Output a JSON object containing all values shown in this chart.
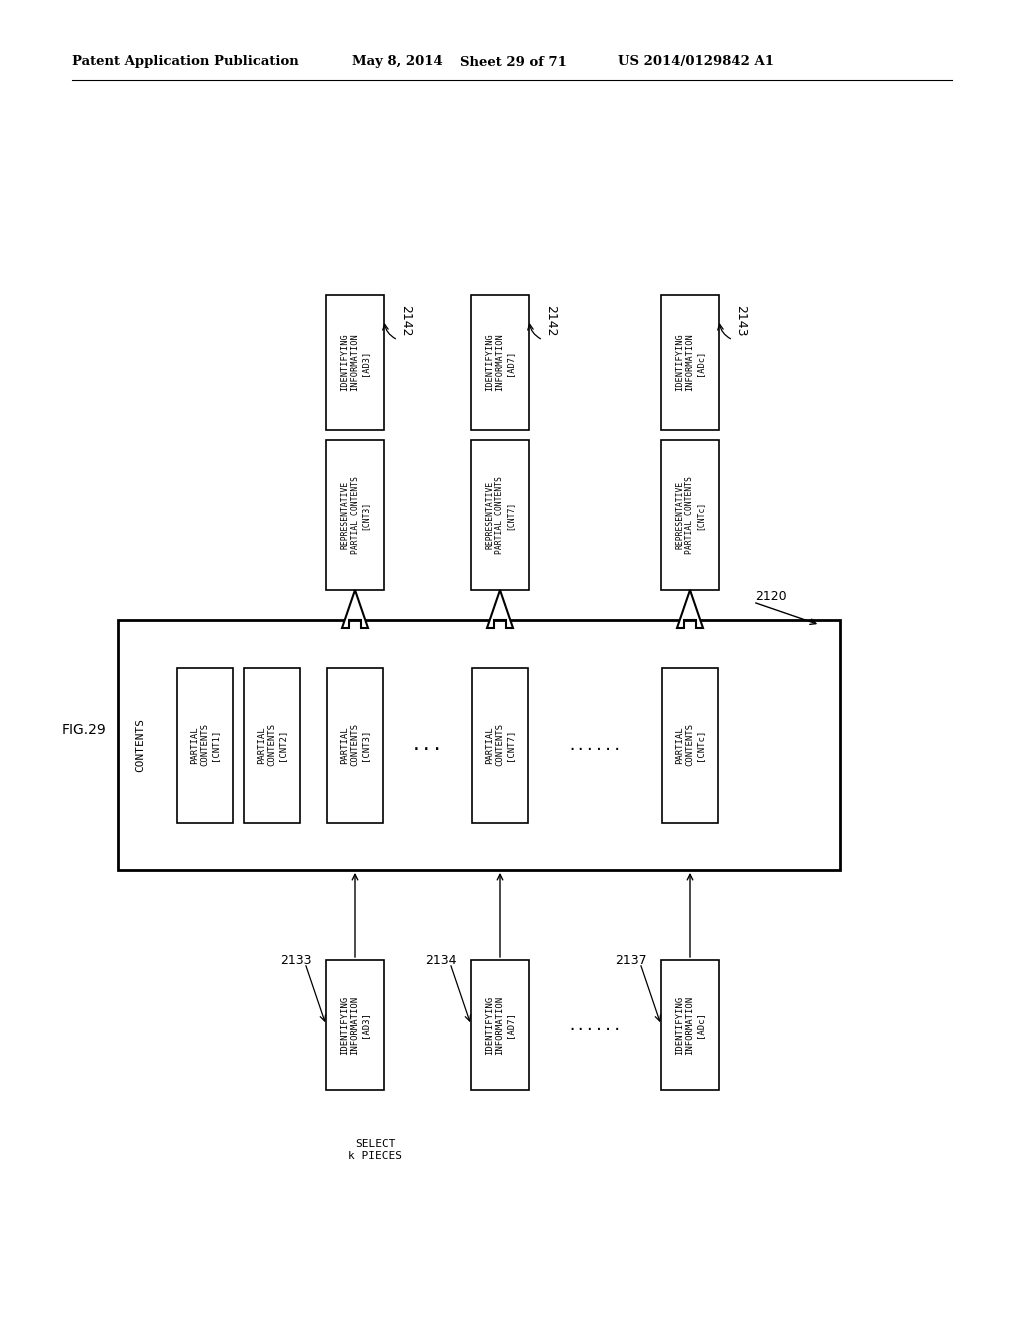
{
  "bg_color": "#ffffff",
  "header_text": "Patent Application Publication",
  "header_date": "May 8, 2014",
  "header_sheet": "Sheet 29 of 71",
  "header_patent": "US 2014/0129842 A1",
  "fig_label": "FIG.29",
  "label_2120": "2120",
  "label_2133": "2133",
  "label_2134": "2134",
  "label_2137": "2137",
  "label_2142a": "2142",
  "label_2142b": "2142",
  "label_2143": "2143",
  "contents_label": "CONTENTS",
  "select_label": "SELECT\nk PIECES",
  "cnt1": [
    "PARTIAL",
    "CONTENTS",
    "[CNT1]"
  ],
  "cnt2": [
    "PARTIAL",
    "CONTENTS",
    "[CNT2]"
  ],
  "cnt3": [
    "PARTIAL",
    "CONTENTS",
    "[CNT3]"
  ],
  "cnt7": [
    "PARTIAL",
    "CONTENTS",
    "[CNT7]"
  ],
  "cntc": [
    "PARTIAL",
    "CONTENTS",
    "[CNTc]"
  ],
  "id_ad3": [
    "IDENTIFYING",
    "INFORMATION",
    "[AD3]"
  ],
  "id_ad7": [
    "IDENTIFYING",
    "INFORMATION",
    "[AD7]"
  ],
  "id_adc": [
    "IDENTIFYING",
    "INFORMATION",
    "[ADc]"
  ],
  "rep_cnt3": [
    "REPRESENTATIVE",
    "PARTIAL CONTENTS",
    "[CNT3]"
  ],
  "rep_cnt7": [
    "REPRESENTATIVE",
    "PARTIAL CONTENTS",
    "[CNT7]"
  ],
  "rep_cntc": [
    "REPRESENTATIVE",
    "PARTIAL CONTENTS",
    "[CNTc]"
  ]
}
